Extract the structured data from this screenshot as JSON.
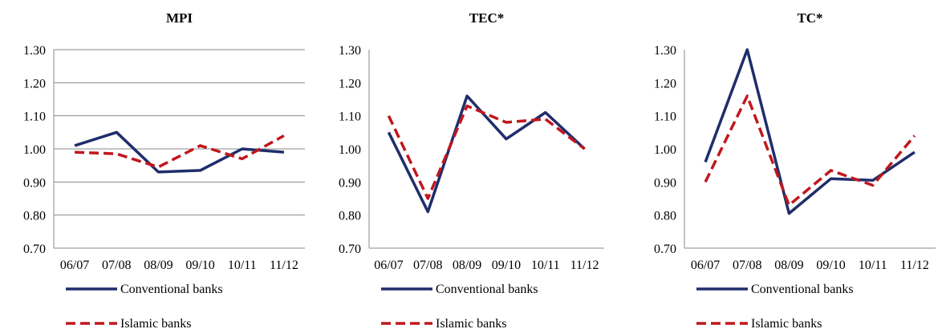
{
  "chart_data": [
    {
      "type": "line",
      "title": "MPI",
      "categories": [
        "06/07",
        "07/08",
        "08/09",
        "09/10",
        "10/11",
        "11/12"
      ],
      "ylim": [
        0.7,
        1.3
      ],
      "yticks": [
        "0.70",
        "0.80",
        "0.90",
        "1.00",
        "1.10",
        "1.20",
        "1.30"
      ],
      "grid": true,
      "legend_position": "bottom",
      "series": [
        {
          "name": "Conventional banks",
          "color": "#1f2d6b",
          "style": "solid",
          "values": [
            1.01,
            1.05,
            0.93,
            0.935,
            1.0,
            0.99
          ]
        },
        {
          "name": "Islamic banks",
          "color": "#c0171d",
          "style": "dashed",
          "values": [
            0.99,
            0.985,
            0.945,
            1.01,
            0.97,
            1.04
          ]
        }
      ]
    },
    {
      "type": "line",
      "title": "TEC*",
      "categories": [
        "06/07",
        "07/08",
        "08/09",
        "09/10",
        "10/11",
        "11/12"
      ],
      "ylim": [
        0.7,
        1.3
      ],
      "yticks": [
        "0.70",
        "0.80",
        "0.90",
        "1.00",
        "1.10",
        "1.20",
        "1.30"
      ],
      "grid": false,
      "legend_position": "bottom",
      "series": [
        {
          "name": "Conventional banks",
          "color": "#1f2d6b",
          "style": "solid",
          "values": [
            1.05,
            0.81,
            1.16,
            1.03,
            1.11,
            1.0
          ]
        },
        {
          "name": "Islamic banks",
          "color": "#c0171d",
          "style": "dashed",
          "values": [
            1.1,
            0.85,
            1.13,
            1.08,
            1.09,
            1.0
          ]
        }
      ]
    },
    {
      "type": "line",
      "title": "TC*",
      "categories": [
        "06/07",
        "07/08",
        "08/09",
        "09/10",
        "10/11",
        "11/12"
      ],
      "ylim": [
        0.7,
        1.3
      ],
      "yticks": [
        "0.70",
        "0.80",
        "0.90",
        "1.00",
        "1.10",
        "1.20",
        "1.30"
      ],
      "grid": false,
      "legend_position": "bottom",
      "series": [
        {
          "name": "Conventional banks",
          "color": "#1f2d6b",
          "style": "solid",
          "values": [
            0.96,
            1.3,
            0.805,
            0.91,
            0.905,
            0.99
          ]
        },
        {
          "name": "Islamic banks",
          "color": "#c0171d",
          "style": "dashed",
          "values": [
            0.9,
            1.16,
            0.83,
            0.935,
            0.89,
            1.04
          ]
        }
      ]
    }
  ]
}
